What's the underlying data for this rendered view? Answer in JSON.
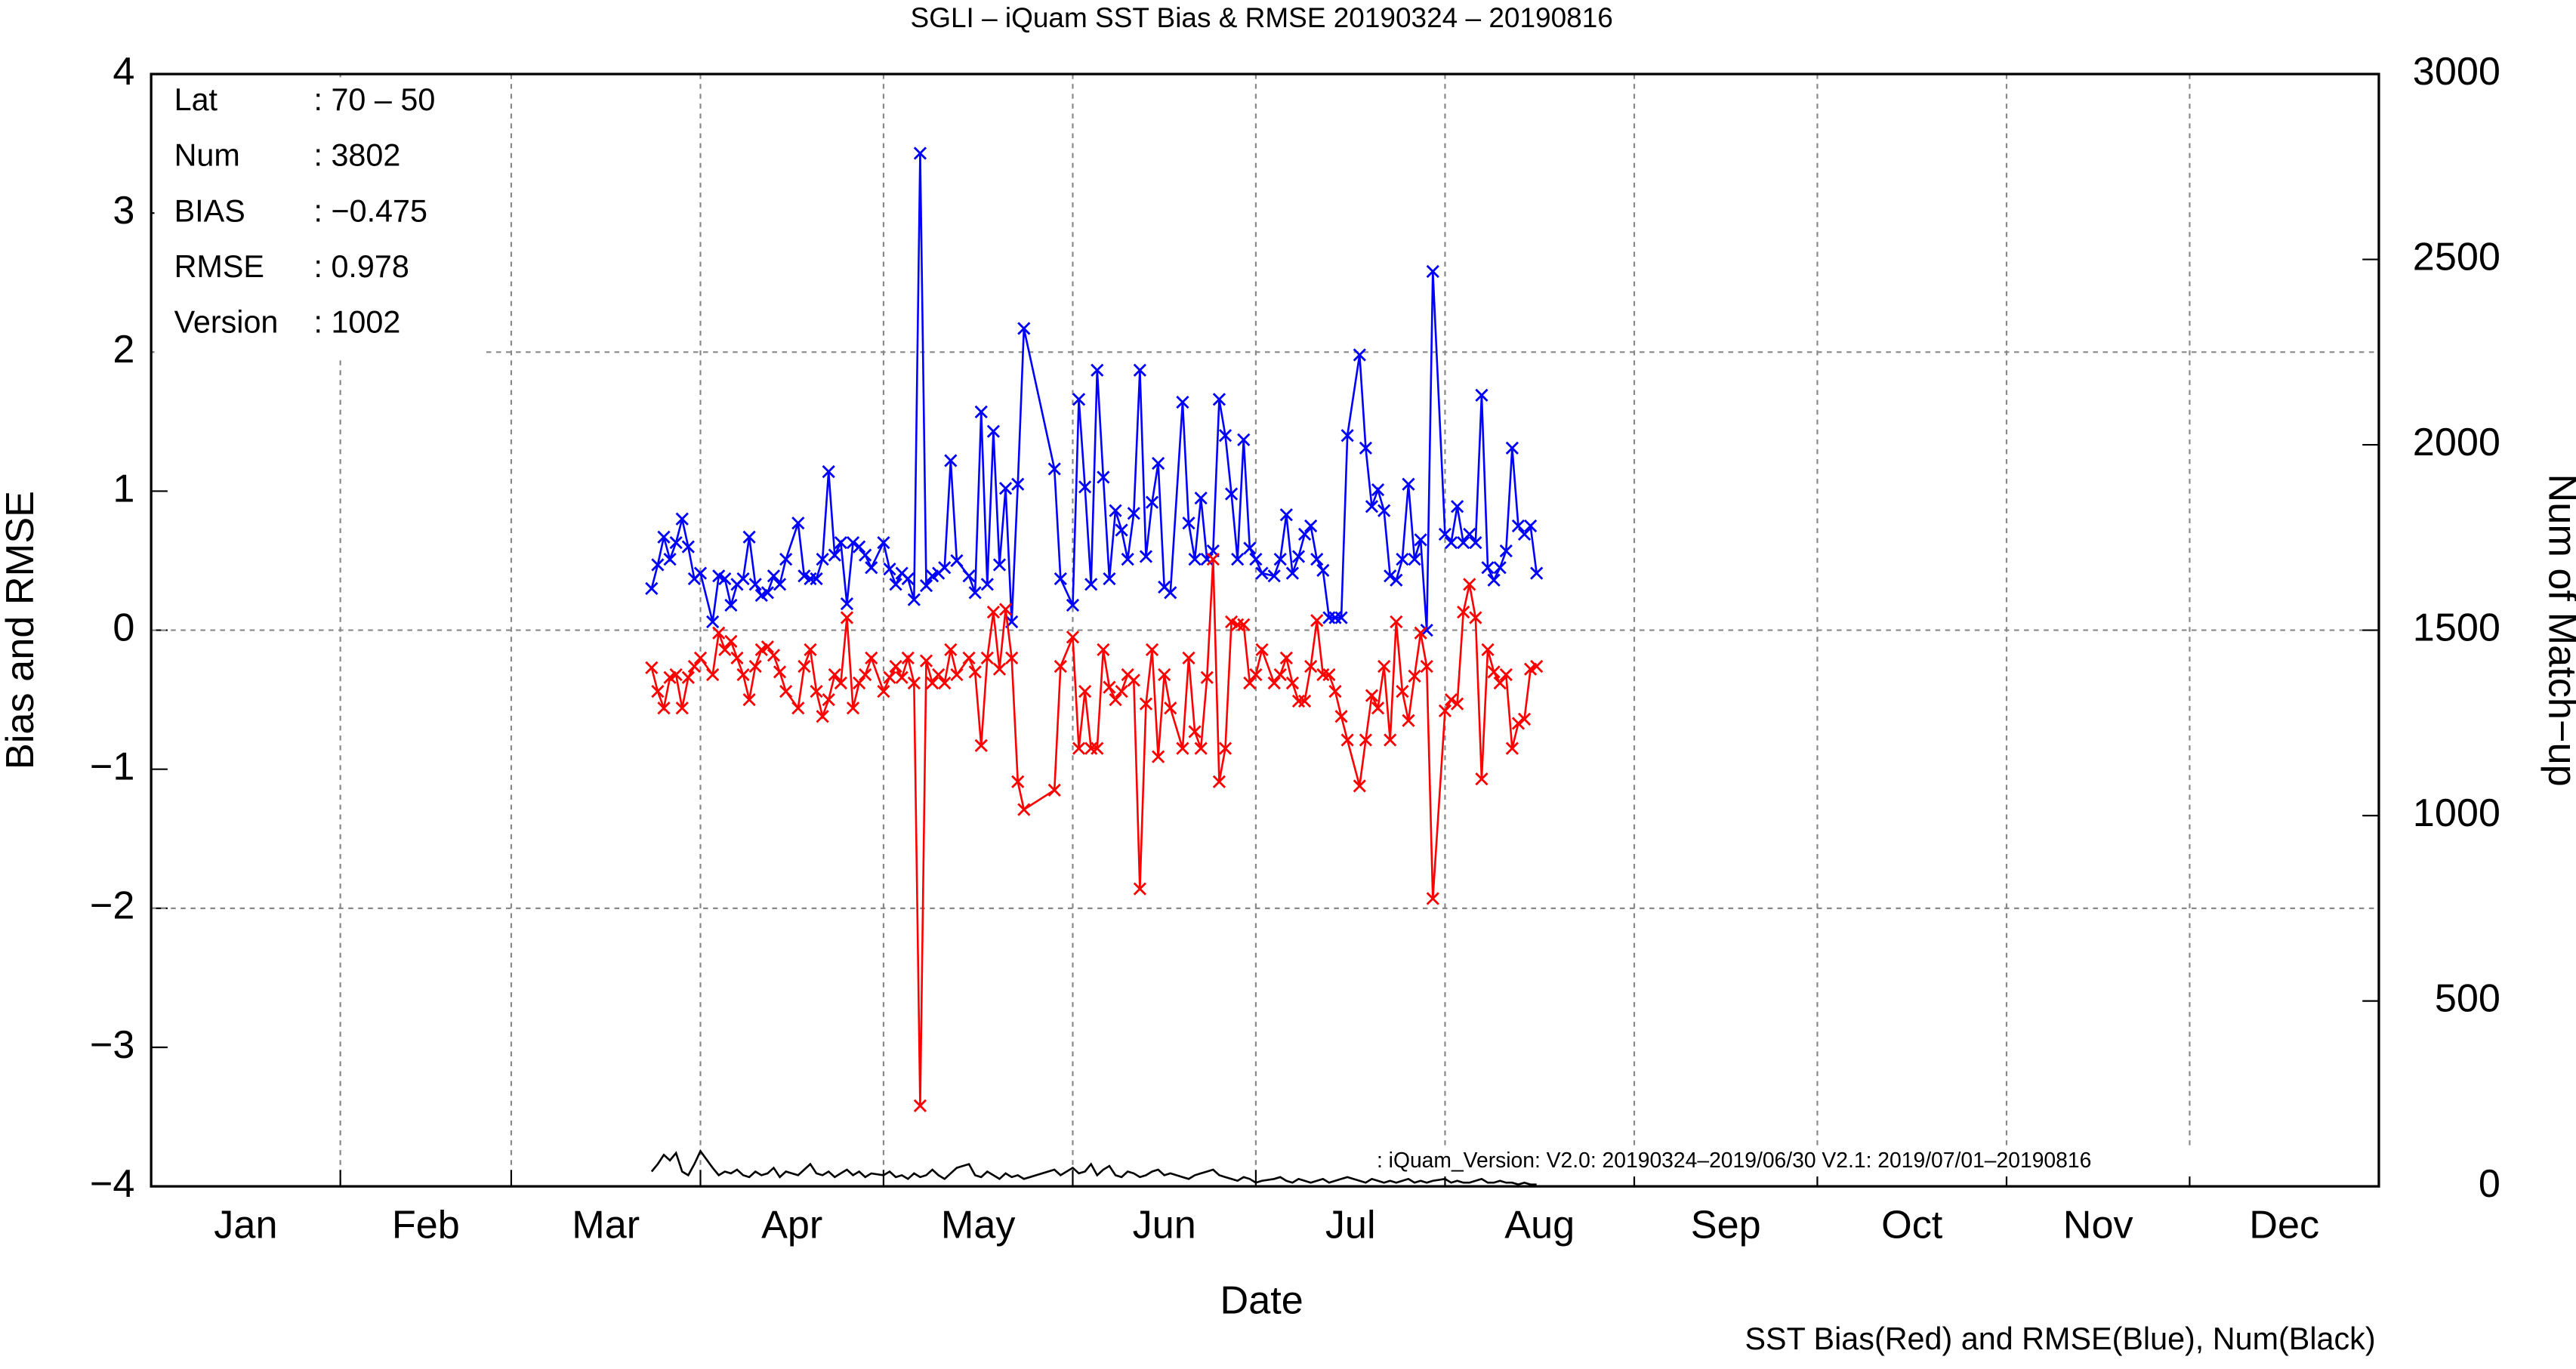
{
  "title": "SGLI – iQuam  SST Bias & RMSE 20190324 – 20190816",
  "info": [
    {
      "label": "Lat",
      "value": ": 70 – 50"
    },
    {
      "label": "Num",
      "value": ": 3802"
    },
    {
      "label": "BIAS",
      "value": ": −0.475"
    },
    {
      "label": "RMSE",
      "value": ": 0.978"
    },
    {
      "label": "Version",
      "value": ": 1002"
    }
  ],
  "annotation": ": iQuam_Version: V2.0: 20190324–2019/06/30 V2.1: 2019/07/01–20190816",
  "footer": "SST Bias(Red) and RMSE(Blue), Num(Black)",
  "chart_data": {
    "type": "line",
    "x_label": "Date",
    "y_label": "Bias and RMSE",
    "y2_label": "Num of Match−up",
    "xlim": [
      0,
      365
    ],
    "xticks": [
      {
        "value": 0,
        "label": "Jan"
      },
      {
        "value": 31,
        "label": "Feb"
      },
      {
        "value": 59,
        "label": "Mar"
      },
      {
        "value": 90,
        "label": "Apr"
      },
      {
        "value": 120,
        "label": "May"
      },
      {
        "value": 151,
        "label": "Jun"
      },
      {
        "value": 181,
        "label": "Jul"
      },
      {
        "value": 212,
        "label": "Aug"
      },
      {
        "value": 243,
        "label": "Sep"
      },
      {
        "value": 273,
        "label": "Oct"
      },
      {
        "value": 304,
        "label": "Nov"
      },
      {
        "value": 334,
        "label": "Dec"
      }
    ],
    "ylim": [
      -4,
      4
    ],
    "yticks": [
      {
        "value": -4,
        "label": "−4"
      },
      {
        "value": -3,
        "label": "−3"
      },
      {
        "value": -2,
        "label": "−2"
      },
      {
        "value": -1,
        "label": "−1"
      },
      0,
      1,
      2,
      3,
      4
    ],
    "y2lim": [
      0,
      3000
    ],
    "y2ticks": [
      0,
      500,
      1000,
      1500,
      2000,
      2500,
      3000
    ],
    "grid": true,
    "x": [
      82,
      83,
      84,
      85,
      86,
      87,
      88,
      89,
      90,
      92,
      93,
      94,
      95,
      96,
      97,
      98,
      99,
      100,
      101,
      102,
      103,
      104,
      106,
      107,
      108,
      109,
      110,
      111,
      112,
      113,
      114,
      115,
      116,
      117,
      118,
      120,
      121,
      122,
      123,
      124,
      125,
      126,
      127,
      128,
      129,
      130,
      131,
      132,
      134,
      135,
      136,
      137,
      138,
      139,
      140,
      141,
      142,
      143,
      148,
      149,
      151,
      152,
      153,
      154,
      155,
      156,
      157,
      158,
      159,
      160,
      161,
      162,
      163,
      164,
      165,
      166,
      167,
      169,
      170,
      171,
      172,
      173,
      174,
      175,
      176,
      177,
      178,
      179,
      180,
      181,
      182,
      184,
      185,
      186,
      187,
      188,
      189,
      190,
      191,
      192,
      193,
      194,
      195,
      196,
      198,
      199,
      200,
      201,
      202,
      203,
      204,
      205,
      206,
      207,
      208,
      209,
      210,
      212,
      213,
      214,
      215,
      216,
      217,
      218,
      219,
      220,
      221,
      222,
      223,
      224,
      225,
      226,
      227
    ],
    "series": [
      {
        "color": "#0000ff",
        "marker": "x",
        "values": [
          0.3,
          0.47,
          0.67,
          0.51,
          0.63,
          0.8,
          0.6,
          0.37,
          0.41,
          0.06,
          0.39,
          0.37,
          0.18,
          0.33,
          0.37,
          0.67,
          0.33,
          0.25,
          0.27,
          0.39,
          0.33,
          0.51,
          0.77,
          0.39,
          0.37,
          0.37,
          0.51,
          1.14,
          0.54,
          0.63,
          0.19,
          0.63,
          0.6,
          0.54,
          0.45,
          0.63,
          0.44,
          0.33,
          0.41,
          0.37,
          0.22,
          3.43,
          0.32,
          0.39,
          0.41,
          0.45,
          1.22,
          0.5,
          0.39,
          0.27,
          1.57,
          0.33,
          1.43,
          0.47,
          1.02,
          0.06,
          1.05,
          2.17,
          1.16,
          0.37,
          0.18,
          1.66,
          1.03,
          0.33,
          1.87,
          1.1,
          0.37,
          0.86,
          0.72,
          0.51,
          0.84,
          1.87,
          0.53,
          0.92,
          1.2,
          0.31,
          0.27,
          1.64,
          0.77,
          0.51,
          0.95,
          0.51,
          0.57,
          1.66,
          1.4,
          0.98,
          0.51,
          1.37,
          0.59,
          0.51,
          0.41,
          0.39,
          0.51,
          0.83,
          0.41,
          0.53,
          0.69,
          0.75,
          0.51,
          0.43,
          0.09,
          0.09,
          0.09,
          1.4,
          1.98,
          1.31,
          0.89,
          1.01,
          0.86,
          0.39,
          0.36,
          0.51,
          1.05,
          0.51,
          0.65,
          0.0,
          2.58,
          0.69,
          0.63,
          0.89,
          0.63,
          0.69,
          0.63,
          1.69,
          0.45,
          0.36,
          0.45,
          0.57,
          1.31,
          0.75,
          0.69,
          0.75,
          0.41
        ]
      },
      {
        "color": "#ff0000",
        "marker": "x",
        "values": [
          -0.27,
          -0.44,
          -0.56,
          -0.34,
          -0.32,
          -0.56,
          -0.34,
          -0.26,
          -0.2,
          -0.32,
          -0.02,
          -0.14,
          -0.08,
          -0.2,
          -0.32,
          -0.5,
          -0.26,
          -0.14,
          -0.12,
          -0.18,
          -0.3,
          -0.44,
          -0.56,
          -0.26,
          -0.14,
          -0.44,
          -0.62,
          -0.5,
          -0.32,
          -0.38,
          0.09,
          -0.56,
          -0.38,
          -0.32,
          -0.2,
          -0.44,
          -0.34,
          -0.26,
          -0.34,
          -0.2,
          -0.38,
          -3.42,
          -0.22,
          -0.38,
          -0.32,
          -0.38,
          -0.14,
          -0.32,
          -0.2,
          -0.3,
          -0.83,
          -0.2,
          0.13,
          -0.28,
          0.15,
          -0.2,
          -1.09,
          -1.29,
          -1.15,
          -0.26,
          -0.05,
          -0.85,
          -0.44,
          -0.85,
          -0.85,
          -0.14,
          -0.41,
          -0.5,
          -0.44,
          -0.32,
          -0.36,
          -1.86,
          -0.53,
          -0.14,
          -0.91,
          -0.32,
          -0.56,
          -0.85,
          -0.2,
          -0.73,
          -0.85,
          -0.34,
          0.51,
          -1.09,
          -0.85,
          0.06,
          0.04,
          0.04,
          -0.38,
          -0.32,
          -0.14,
          -0.38,
          -0.32,
          -0.2,
          -0.38,
          -0.51,
          -0.51,
          -0.26,
          0.07,
          -0.32,
          -0.32,
          -0.44,
          -0.62,
          -0.79,
          -1.12,
          -0.79,
          -0.47,
          -0.56,
          -0.26,
          -0.79,
          0.06,
          -0.44,
          -0.65,
          -0.33,
          -0.02,
          -0.26,
          -1.93,
          -0.58,
          -0.5,
          -0.53,
          0.13,
          0.33,
          0.09,
          -1.07,
          -0.14,
          -0.3,
          -0.38,
          -0.32,
          -0.85,
          -0.67,
          -0.64,
          -0.28,
          -0.26
        ]
      },
      {
        "color": "#000000",
        "axis": "y2",
        "values": [
          40,
          60,
          85,
          70,
          90,
          40,
          30,
          60,
          95,
          50,
          30,
          40,
          35,
          45,
          30,
          25,
          40,
          30,
          35,
          50,
          25,
          40,
          30,
          45,
          60,
          35,
          30,
          40,
          25,
          35,
          45,
          30,
          40,
          25,
          35,
          30,
          40,
          25,
          30,
          20,
          35,
          25,
          30,
          45,
          30,
          20,
          35,
          50,
          60,
          30,
          25,
          40,
          30,
          20,
          35,
          25,
          30,
          20,
          45,
          30,
          50,
          35,
          40,
          60,
          30,
          45,
          55,
          30,
          25,
          40,
          35,
          25,
          30,
          40,
          45,
          30,
          35,
          25,
          20,
          30,
          35,
          40,
          45,
          30,
          25,
          20,
          15,
          25,
          20,
          10,
          15,
          20,
          25,
          15,
          10,
          20,
          15,
          10,
          15,
          20,
          10,
          15,
          20,
          25,
          15,
          10,
          20,
          15,
          10,
          15,
          10,
          15,
          20,
          10,
          15,
          10,
          15,
          20,
          10,
          15,
          10,
          10,
          15,
          20,
          10,
          10,
          15,
          10,
          10,
          5,
          10,
          5,
          5
        ]
      }
    ]
  }
}
